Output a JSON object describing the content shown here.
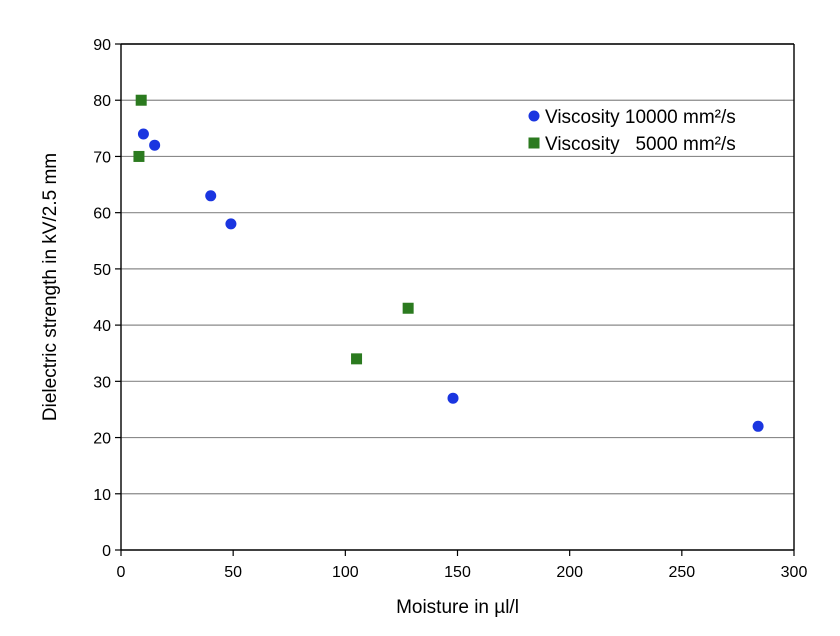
{
  "chart_data": {
    "type": "scatter",
    "title": "",
    "xlabel": "Moisture in µl/l",
    "ylabel": "Dielectric strength in kV/2.5 mm",
    "xlim": [
      0,
      300
    ],
    "ylim": [
      0,
      90
    ],
    "x_ticks": [
      0,
      50,
      100,
      150,
      200,
      250,
      300
    ],
    "y_ticks": [
      0,
      10,
      20,
      30,
      40,
      50,
      60,
      70,
      80,
      90
    ],
    "grid": "horizontal",
    "legend_position": "top-right",
    "series": [
      {
        "name": "Viscosity 10000 mm²/s",
        "marker": "circle",
        "color": "#1a35e0",
        "points": [
          {
            "x": 10,
            "y": 74
          },
          {
            "x": 15,
            "y": 72
          },
          {
            "x": 40,
            "y": 63
          },
          {
            "x": 49,
            "y": 58
          },
          {
            "x": 148,
            "y": 27
          },
          {
            "x": 284,
            "y": 22
          }
        ]
      },
      {
        "name": "Viscosity   5000 mm²/s",
        "marker": "square",
        "color": "#2b7a1f",
        "points": [
          {
            "x": 9,
            "y": 80
          },
          {
            "x": 8,
            "y": 70
          },
          {
            "x": 105,
            "y": 34
          },
          {
            "x": 128,
            "y": 43
          }
        ]
      }
    ]
  }
}
